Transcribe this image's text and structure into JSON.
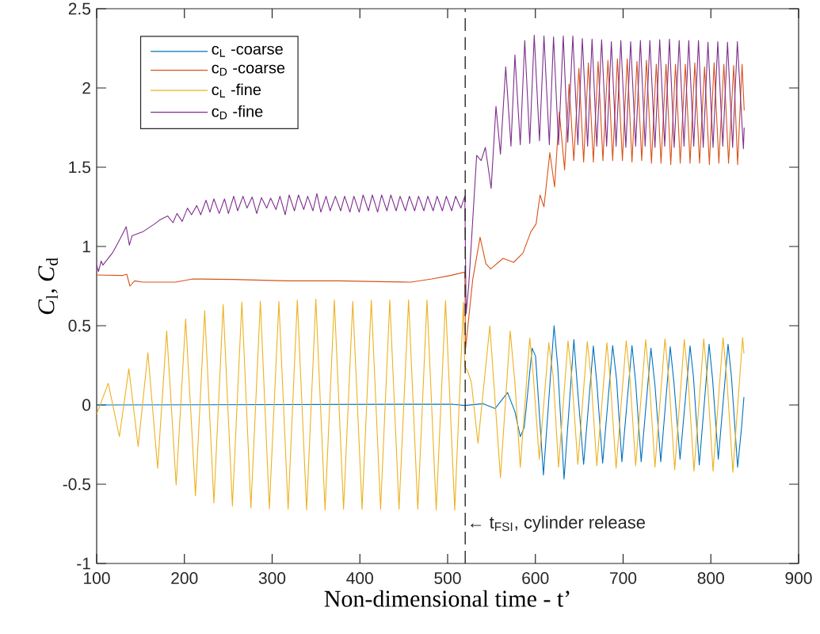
{
  "chart_data": {
    "type": "line",
    "xlabel": "Non-dimensional time - t’",
    "ylabel": "*C*$_{l}$, *C*$_{d}$",
    "xlim": [
      100,
      900
    ],
    "ylim": [
      -1,
      2.5
    ],
    "xticks": [
      100,
      200,
      300,
      400,
      500,
      600,
      700,
      800,
      900
    ],
    "yticks": [
      -1,
      -0.5,
      0,
      0.5,
      1,
      1.5,
      2,
      2.5
    ],
    "legend": "top left",
    "ref_lines": [
      {
        "axis": "x",
        "value": 520,
        "color": "#262626",
        "line_style": "dashed"
      }
    ],
    "annotations": [
      {
        "text": "← t$_{FSI}$, cylinder release",
        "x": 520,
        "y": -0.75
      }
    ],
    "series": [
      {
        "name": "c$_{L}$ -coarse",
        "color": "#0072bd",
        "x": [
          100,
          505,
          519.5,
          540.6,
          554.2,
          568.3,
          576.7,
          582.8,
          587.3,
          596.3,
          600.2,
          609.2,
          621.3,
          625.5,
          632.7,
          643.9,
          647.5,
          655,
          666.1,
          670,
          676.7,
          688.1,
          692.6,
          698.6,
          710.1,
          714.3,
          720.6,
          731.7,
          736.3,
          742.9,
          753.7,
          757.9,
          764.9,
          776.3,
          780.2,
          786.8,
          798,
          801.9,
          808.5,
          819.6,
          823.5,
          830.5,
          835,
          837.7
        ],
        "values": [
          0,
          0.005,
          -0.003,
          0.008,
          -0.022,
          0.078,
          -0.042,
          -0.2,
          -0.142,
          0.358,
          0.308,
          -0.442,
          0.5,
          0.242,
          -0.467,
          0.412,
          0.142,
          -0.375,
          0.372,
          0.142,
          -0.367,
          0.375,
          0.158,
          -0.358,
          0.375,
          0.142,
          -0.358,
          0.358,
          0.125,
          -0.358,
          0.367,
          0.142,
          -0.342,
          0.372,
          0.175,
          -0.378,
          0.383,
          0.167,
          -0.342,
          0.383,
          0.175,
          -0.392,
          -0.142,
          0.05
        ]
      },
      {
        "name": "c$_{D}$ -coarse",
        "color": "#d95319",
        "x": [
          100,
          129.8,
          134.3,
          137.9,
          143.3,
          152.4,
          190,
          209.6,
          256.2,
          316.4,
          376.6,
          421.8,
          457.9,
          482,
          503.1,
          519.6,
          520.5,
          528.6,
          537,
          543.6,
          549,
          563.2,
          575.2,
          585.8,
          594.8,
          600.8,
          605.3,
          609.8,
          616.5,
          621.9,
          627.3,
          633.3,
          638.4,
          643.8,
          649.6,
          655,
          660.4,
          666.1,
          671.5,
          677,
          682.7,
          688.1,
          693.5,
          699.2,
          704.7,
          710.1,
          715.8,
          721.2,
          726.6,
          732.3,
          737.8,
          743.2,
          748.9,
          754.3,
          759.7,
          765.1,
          770.9,
          776.3,
          781.7,
          787.1,
          792.8,
          798.3,
          803.7,
          809.1,
          814.8,
          820.2,
          826,
          830.5,
          835.6,
          838
        ],
        "values": [
          0.82,
          0.817,
          0.825,
          0.75,
          0.783,
          0.775,
          0.775,
          0.795,
          0.792,
          0.783,
          0.783,
          0.778,
          0.775,
          0.795,
          0.817,
          0.838,
          0.358,
          0.792,
          1.058,
          0.892,
          0.858,
          0.925,
          0.9,
          0.958,
          1.092,
          1.142,
          1.325,
          1.25,
          1.592,
          1.375,
          1.85,
          1.483,
          2.025,
          1.542,
          2.125,
          1.533,
          2.158,
          1.533,
          2.167,
          1.542,
          2.175,
          1.542,
          2.183,
          1.542,
          2.183,
          1.533,
          2.167,
          1.542,
          2.175,
          1.525,
          2.15,
          1.525,
          2.15,
          1.517,
          2.15,
          1.525,
          2.15,
          1.525,
          2.158,
          1.525,
          2.133,
          1.517,
          2.158,
          1.525,
          2.15,
          1.525,
          2.142,
          1.517,
          2.15,
          1.858
        ]
      },
      {
        "name": "c$_{L}$ -fine",
        "color": "#edb120",
        "x": [
          100,
          113.2,
          125.9,
          136.7,
          147.3,
          158.4,
          169.5,
          179.8,
          190.6,
          201.4,
          212.6,
          223.1,
          233.6,
          244.2,
          254.7,
          265.5,
          275.8,
          286.6,
          296.8,
          307.7,
          318.2,
          328.7,
          339.3,
          349.8,
          360.3,
          370.9,
          381.4,
          391.9,
          402.5,
          413,
          423.6,
          434.1,
          444.6,
          455.5,
          466,
          476.5,
          487,
          497.6,
          508.1,
          518,
          519.5,
          522.6,
          527.1,
          534.6,
          548.1,
          560.2,
          571.3,
          576.7,
          582.8,
          593.6,
          597.8,
          604.4,
          615.3,
          620.4,
          626.4,
          637.2,
          641.5,
          648.4,
          659.2,
          663.4,
          670,
          681.5,
          685.1,
          692,
          703.5,
          707.7,
          714.3,
          725.7,
          729.6,
          736.3,
          747.7,
          751.9,
          758.8,
          769.7,
          773.9,
          780.8,
          791.9,
          795.8,
          802.5,
          813.9,
          818.1,
          825.1,
          836.2,
          837.7
        ],
        "values": [
          -0.058,
          0.137,
          -0.2,
          0.228,
          -0.262,
          0.33,
          -0.4,
          0.467,
          -0.505,
          0.542,
          -0.572,
          0.595,
          -0.617,
          0.633,
          -0.638,
          0.65,
          -0.65,
          0.655,
          -0.655,
          0.653,
          -0.658,
          0.662,
          -0.662,
          0.667,
          -0.662,
          0.662,
          -0.658,
          0.653,
          -0.658,
          0.662,
          -0.658,
          0.663,
          -0.658,
          0.663,
          -0.658,
          0.662,
          -0.662,
          0.658,
          -0.662,
          0.65,
          0.242,
          0.217,
          0.142,
          -0.242,
          0.5,
          -0.458,
          0.467,
          0.142,
          -0.392,
          0.422,
          0.175,
          -0.342,
          0.392,
          0.175,
          -0.392,
          0.405,
          0.175,
          -0.375,
          0.4,
          0.175,
          -0.383,
          0.392,
          0.175,
          -0.4,
          0.405,
          0.175,
          -0.383,
          0.412,
          0.175,
          -0.392,
          0.417,
          0.175,
          -0.408,
          0.413,
          0.175,
          -0.417,
          0.417,
          0.175,
          -0.417,
          0.425,
          0.175,
          -0.425,
          0.425,
          0.325
        ]
      },
      {
        "name": "c$_{D}$ -fine",
        "color": "#7e2f8e",
        "x": [
          100,
          102.1,
          105.1,
          107.2,
          117.8,
          123.8,
          129.2,
          133.7,
          137.3,
          140.3,
          152.4,
          165.9,
          171.9,
          181,
          187,
          191.5,
          197.5,
          203.5,
          208.1,
          214.1,
          218.6,
          224.6,
          229.1,
          233.6,
          239.7,
          245.7,
          250.2,
          256.2,
          260.7,
          266.8,
          271.3,
          277.3,
          282.4,
          287.8,
          293.8,
          298.3,
          304.4,
          308.9,
          314.9,
          319.4,
          325.4,
          330,
          336,
          340.5,
          346.5,
          351,
          355.5,
          361.5,
          366.1,
          372.1,
          378.1,
          382.6,
          388.6,
          393.2,
          399.2,
          403.7,
          409.7,
          414.2,
          420.2,
          424.8,
          430.8,
          435.3,
          441.3,
          445.8,
          451.9,
          456.4,
          462.4,
          466.9,
          472.9,
          477.4,
          483.5,
          488,
          494,
          498.5,
          504.6,
          509.1,
          515.1,
          519.6,
          521.1,
          524.1,
          533.1,
          538.2,
          543,
          549.6,
          555.1,
          560.2,
          566.2,
          572.2,
          576.7,
          582.8,
          587.9,
          593.6,
          598.7,
          604.7,
          609.8,
          615.9,
          620.7,
          626.4,
          631.8,
          636.9,
          642.7,
          648.4,
          653.5,
          659.5,
          664.6,
          670,
          675.5,
          681.2,
          686.6,
          692,
          697.4,
          703.1,
          708.6,
          714.3,
          719.7,
          725.1,
          730.5,
          736.3,
          741.7,
          747.4,
          752.8,
          758.2,
          763.9,
          769.4,
          774.8,
          780.5,
          785.9,
          791.3,
          796.7,
          802.5,
          807.9,
          813.6,
          819,
          824.8,
          830.2,
          837.1,
          838
        ],
        "values": [
          0.883,
          0.842,
          0.908,
          0.883,
          0.958,
          1.017,
          1.075,
          1.125,
          1.008,
          1.067,
          1.092,
          1.142,
          1.167,
          1.192,
          1.15,
          1.208,
          1.158,
          1.242,
          1.2,
          1.258,
          1.2,
          1.292,
          1.217,
          1.3,
          1.208,
          1.3,
          1.208,
          1.317,
          1.225,
          1.317,
          1.242,
          1.312,
          1.208,
          1.308,
          1.242,
          1.305,
          1.233,
          1.317,
          1.2,
          1.325,
          1.225,
          1.325,
          1.233,
          1.317,
          1.225,
          1.333,
          1.217,
          1.317,
          1.225,
          1.317,
          1.225,
          1.317,
          1.217,
          1.317,
          1.217,
          1.325,
          1.225,
          1.325,
          1.217,
          1.325,
          1.225,
          1.325,
          1.225,
          1.317,
          1.225,
          1.317,
          1.225,
          1.317,
          1.225,
          1.317,
          1.225,
          1.317,
          1.225,
          1.317,
          1.225,
          1.317,
          1.242,
          1.317,
          0.575,
          0.758,
          1.575,
          1.542,
          1.625,
          1.367,
          1.883,
          1.583,
          2.133,
          1.633,
          2.208,
          1.642,
          2.3,
          1.65,
          2.333,
          1.667,
          2.328,
          1.642,
          2.322,
          1.642,
          2.328,
          1.658,
          2.328,
          1.642,
          2.312,
          1.633,
          2.308,
          1.633,
          2.305,
          1.633,
          2.292,
          1.633,
          2.3,
          1.625,
          2.292,
          1.633,
          2.3,
          1.633,
          2.3,
          1.625,
          2.305,
          1.633,
          2.308,
          1.625,
          2.3,
          1.633,
          2.3,
          1.633,
          2.3,
          1.625,
          2.288,
          1.625,
          2.292,
          1.633,
          2.288,
          1.625,
          2.292,
          1.617,
          1.75
        ]
      }
    ]
  }
}
